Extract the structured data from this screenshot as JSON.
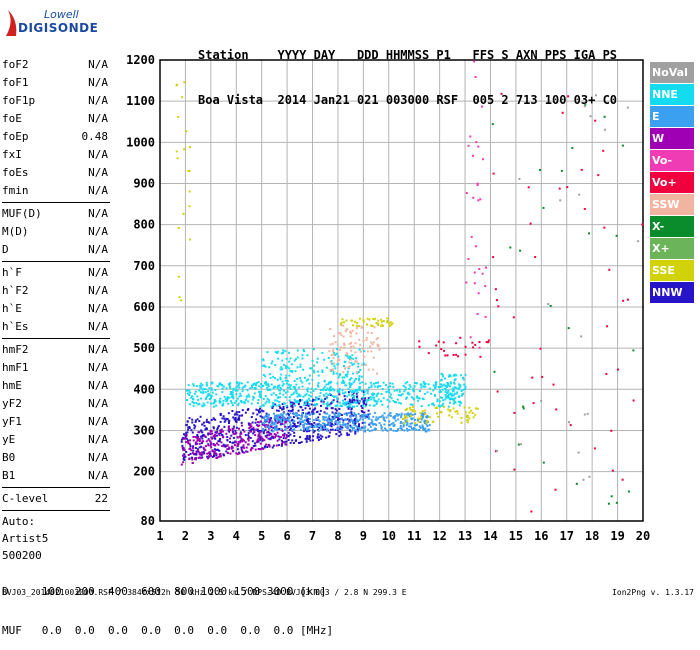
{
  "logo": {
    "line1": "Lowell",
    "line2": "DIGISONDE"
  },
  "header": {
    "labels": "Station    YYYY DAY   DDD HHMMSS P1   FFS S AXN PPS IGA PS",
    "values": "Boa Vista  2014 Jan21 021 003000 RSF  005 2 713 100 03+ C0"
  },
  "params": {
    "group1": [
      {
        "name": "foF2",
        "value": "N/A"
      },
      {
        "name": "foF1",
        "value": "N/A"
      },
      {
        "name": "foF1p",
        "value": "N/A"
      },
      {
        "name": "foE",
        "value": "N/A"
      },
      {
        "name": "foEp",
        "value": "0.48"
      },
      {
        "name": "fxI",
        "value": "N/A"
      },
      {
        "name": "foEs",
        "value": "N/A"
      },
      {
        "name": "fmin",
        "value": "N/A"
      }
    ],
    "group2": [
      {
        "name": "MUF(D)",
        "value": "N/A"
      },
      {
        "name": "M(D)",
        "value": "N/A"
      },
      {
        "name": "D",
        "value": "N/A"
      }
    ],
    "group3": [
      {
        "name": "h`F",
        "value": "N/A"
      },
      {
        "name": "h`F2",
        "value": "N/A"
      },
      {
        "name": "h`E",
        "value": "N/A"
      },
      {
        "name": "h`Es",
        "value": "N/A"
      }
    ],
    "group4": [
      {
        "name": "hmF2",
        "value": "N/A"
      },
      {
        "name": "hmF1",
        "value": "N/A"
      },
      {
        "name": "hmE",
        "value": "N/A"
      },
      {
        "name": "yF2",
        "value": "N/A"
      },
      {
        "name": "yF1",
        "value": "N/A"
      },
      {
        "name": "yE",
        "value": "N/A"
      },
      {
        "name": "B0",
        "value": "N/A"
      },
      {
        "name": "B1",
        "value": "N/A"
      }
    ],
    "clevel": {
      "name": "C-level",
      "value": "22"
    },
    "auto": [
      "Auto:",
      "Artist5",
      "500200"
    ]
  },
  "legend": [
    {
      "label": "NoVal",
      "color": "#a0a0a0"
    },
    {
      "label": "NNE",
      "color": "#14dcf0"
    },
    {
      "label": "E",
      "color": "#3ca0f0"
    },
    {
      "label": "W",
      "color": "#a000b4"
    },
    {
      "label": "Vo-",
      "color": "#f03cb4"
    },
    {
      "label": "Vo+",
      "color": "#f0003c"
    },
    {
      "label": "SSW",
      "color": "#f0b4a0"
    },
    {
      "label": "X-",
      "color": "#0a8c2c"
    },
    {
      "label": "X+",
      "color": "#6cb45a"
    },
    {
      "label": "SSE",
      "color": "#d2d20a"
    },
    {
      "label": "NNW",
      "color": "#2814c8"
    }
  ],
  "footer": {
    "d_line": "D     100  200  400  600  800 1000 1500 3000 [km]",
    "muf_line": "MUF   0.0  0.0  0.0  0.0  0.0  0.0  0.0  0.0 [MHz]",
    "fileinfo": "BVJ03_2014021003000.RSF / 384fx512h 50 kHz 2.5 km / DPS-4D BVJ03 003 / 2.8 N 299.3 E",
    "version": "Ion2Png v. 1.3.17"
  },
  "chart_data": {
    "type": "scatter",
    "xlim": [
      1,
      20
    ],
    "ylim": [
      80,
      1200
    ],
    "x_ticks": [
      1,
      2,
      3,
      4,
      5,
      6,
      7,
      8,
      9,
      10,
      11,
      12,
      13,
      14,
      15,
      16,
      17,
      18,
      19,
      20
    ],
    "y_ticks": [
      80,
      200,
      300,
      400,
      500,
      600,
      700,
      800,
      900,
      1000,
      1100,
      1200
    ],
    "grid": true,
    "legend_position": "right",
    "clusters": [
      {
        "series": "NNW",
        "color": "#2814c8",
        "x": [
          1.8,
          9.2
        ],
        "y": [
          225,
          330
        ],
        "count": 700,
        "slope": 10
      },
      {
        "series": "W",
        "color": "#a000b4",
        "x": [
          1.8,
          6.0
        ],
        "y": [
          218,
          290
        ],
        "count": 260,
        "slope": 12
      },
      {
        "series": "E",
        "color": "#3ca0f0",
        "x": [
          5.0,
          11.6
        ],
        "y": [
          300,
          345
        ],
        "count": 420,
        "slope": 0
      },
      {
        "series": "NNE",
        "color": "#14dcf0",
        "x": [
          2.0,
          12.8
        ],
        "y": [
          360,
          420
        ],
        "count": 650,
        "slope": 0
      },
      {
        "series": "NNE",
        "color": "#14dcf0",
        "x": [
          5.0,
          9.0
        ],
        "y": [
          420,
          500
        ],
        "count": 160,
        "slope": 0
      },
      {
        "series": "SSW",
        "color": "#f0b4a0",
        "x": [
          7.6,
          9.6
        ],
        "y": [
          440,
          560
        ],
        "count": 90,
        "slope": 0
      },
      {
        "series": "SSE",
        "color": "#d2d20a",
        "x": [
          8.0,
          10.2
        ],
        "y": [
          555,
          575
        ],
        "count": 40,
        "slope": 0
      },
      {
        "series": "SSE",
        "color": "#d2d20a",
        "x": [
          10.5,
          13.5
        ],
        "y": [
          320,
          360
        ],
        "count": 70,
        "slope": 0
      },
      {
        "series": "NNE",
        "color": "#14dcf0",
        "x": [
          12.0,
          13.0
        ],
        "y": [
          380,
          440
        ],
        "count": 60,
        "slope": 0
      },
      {
        "series": "Vo+",
        "color": "#f0003c",
        "x": [
          11.0,
          14.0
        ],
        "y": [
          480,
          530
        ],
        "count": 25,
        "slope": 0
      },
      {
        "series": "Vo-",
        "color": "#f03cb4",
        "x": [
          13.0,
          13.8
        ],
        "y": [
          500,
          1200
        ],
        "count": 30,
        "slope": 0
      },
      {
        "series": "SSE",
        "color": "#d2d20a",
        "x": [
          1.6,
          2.2
        ],
        "y": [
          600,
          1150
        ],
        "count": 20,
        "slope": 0
      },
      {
        "series": "Vo+",
        "color": "#f0003c",
        "x": [
          14.0,
          20.0
        ],
        "y": [
          100,
          1150
        ],
        "count": 45,
        "slope": 0
      },
      {
        "series": "X-",
        "color": "#0a8c2c",
        "x": [
          14.0,
          20.0
        ],
        "y": [
          100,
          1100
        ],
        "count": 25,
        "slope": 0
      },
      {
        "series": "NoVal",
        "color": "#a0a0a0",
        "x": [
          14.0,
          20.0
        ],
        "y": [
          100,
          1200
        ],
        "count": 20,
        "slope": 0
      }
    ]
  }
}
